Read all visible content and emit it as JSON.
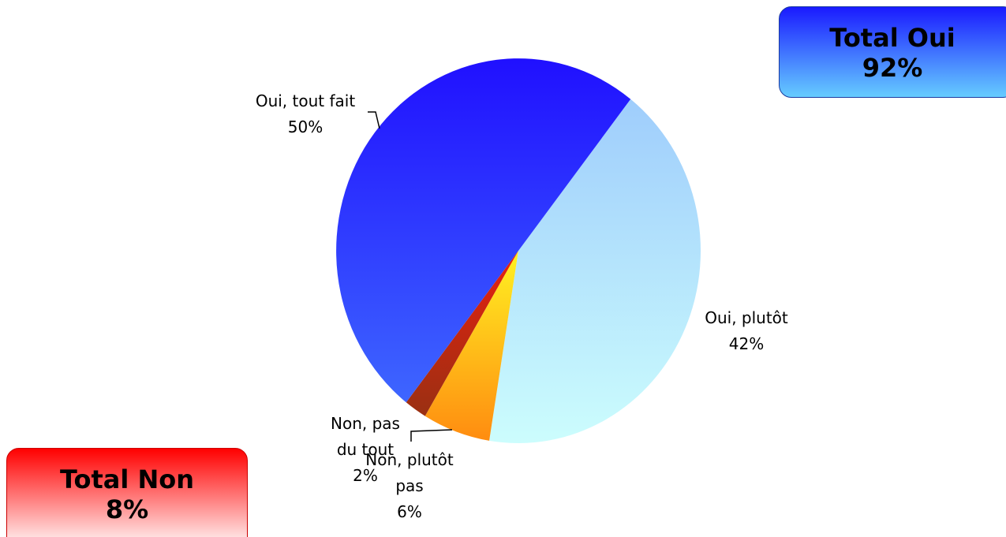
{
  "chart_data": {
    "type": "pie",
    "categories": [
      "Oui, plutôt",
      "Non, plutôt pas",
      "Non, pas du tout",
      "Oui, tout fait"
    ],
    "values": [
      42,
      6,
      2,
      50
    ],
    "value_labels": [
      "42%",
      "6%",
      "2%",
      "50%"
    ],
    "colors": [
      [
        "#9fcdfc",
        "#ccfdfd"
      ],
      [
        "#fff222",
        "#ff8c10"
      ],
      [
        "#e82010",
        "#9a3012"
      ],
      [
        "#2010ff",
        "#3e66ff"
      ]
    ],
    "annotations": [
      {
        "title": "Total Oui",
        "value": "92%",
        "colors": [
          "#1a1aff",
          "#66ccff"
        ]
      },
      {
        "title": "Total Non",
        "value": "8%",
        "colors": [
          "#ff0000",
          "#ffffff"
        ]
      }
    ]
  }
}
